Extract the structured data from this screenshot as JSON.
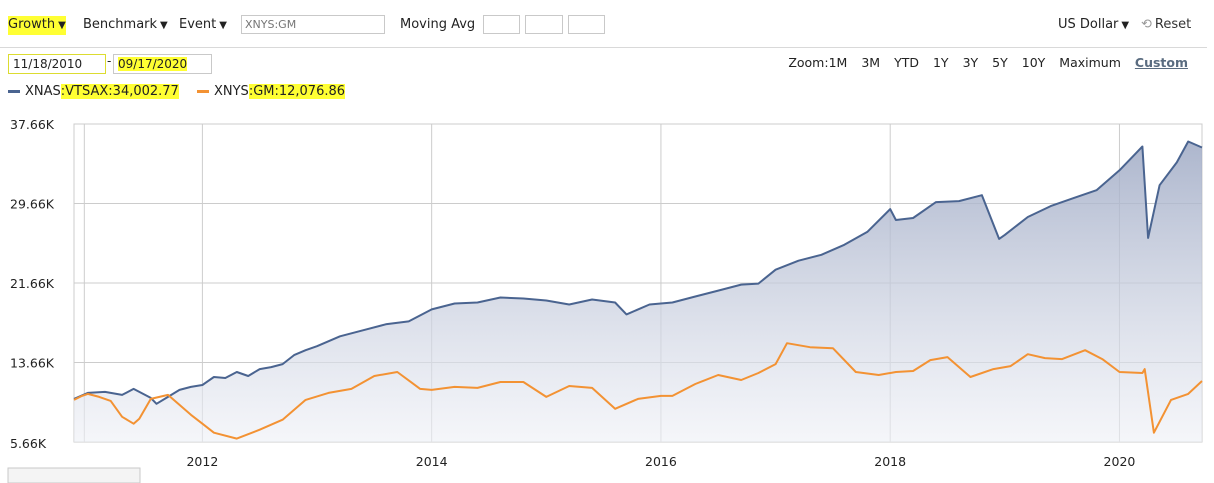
{
  "toolbar": {
    "growth": "Growth",
    "benchmark": "Benchmark",
    "event": "Event",
    "symbol_placeholder": "XNYS:GM",
    "moving_avg": "Moving Avg",
    "currency": "US Dollar",
    "reset": "Reset",
    "arrow": "▼",
    "reset_icon": "⟲"
  },
  "dates": {
    "start": "11/18/2010",
    "end": "09/17/2020",
    "sep": "-"
  },
  "zoom": {
    "label": "Zoom:",
    "options": [
      "1M",
      "3M",
      "YTD",
      "1Y",
      "3Y",
      "5Y",
      "10Y",
      "Maximum",
      "Custom"
    ],
    "active": "Custom"
  },
  "legend": [
    {
      "prefix": "XNAS",
      "symbol": ":VTSAX:34,002.77",
      "color": "#4a6490"
    },
    {
      "prefix": "XNYS",
      "symbol": ":GM:12,076.86",
      "color": "#f39233"
    }
  ],
  "chart_data": {
    "type": "line",
    "x_ticks": [
      "2012",
      "2014",
      "2016",
      "2018",
      "2020"
    ],
    "y_ticks": [
      "37.66K",
      "29.66K",
      "21.66K",
      "13.66K",
      "5.66K"
    ],
    "y_tick_values": [
      37660,
      29660,
      21660,
      13660,
      5660
    ],
    "ylim": [
      5660,
      37660
    ],
    "xlim": [
      2010.88,
      2020.72
    ],
    "series": [
      {
        "name": "XNAS:VTSAX",
        "color": "#4a6490",
        "area": true,
        "x": [
          2010.88,
          2011.0,
          2011.15,
          2011.3,
          2011.4,
          2011.55,
          2011.6,
          2011.7,
          2011.8,
          2011.9,
          2012.0,
          2012.1,
          2012.2,
          2012.3,
          2012.4,
          2012.5,
          2012.6,
          2012.7,
          2012.8,
          2012.9,
          2013.0,
          2013.2,
          2013.4,
          2013.6,
          2013.8,
          2014.0,
          2014.2,
          2014.4,
          2014.6,
          2014.8,
          2015.0,
          2015.2,
          2015.4,
          2015.6,
          2015.7,
          2015.9,
          2016.0,
          2016.1,
          2016.3,
          2016.5,
          2016.7,
          2016.85,
          2017.0,
          2017.2,
          2017.4,
          2017.6,
          2017.8,
          2018.0,
          2018.05,
          2018.2,
          2018.4,
          2018.6,
          2018.8,
          2018.95,
          2019.0,
          2019.2,
          2019.4,
          2019.6,
          2019.8,
          2020.0,
          2020.15,
          2020.2,
          2020.25,
          2020.35,
          2020.5,
          2020.6,
          2020.72
        ],
        "y": [
          10000,
          10600,
          10700,
          10400,
          11000,
          10100,
          9500,
          10200,
          10900,
          11200,
          11400,
          12200,
          12100,
          12700,
          12300,
          13000,
          13200,
          13500,
          14400,
          14900,
          15300,
          16300,
          16900,
          17500,
          17800,
          19000,
          19600,
          19700,
          20200,
          20100,
          19900,
          19500,
          20000,
          19700,
          18500,
          19500,
          19600,
          19700,
          20300,
          20900,
          21500,
          21600,
          23000,
          23900,
          24500,
          25500,
          26800,
          29100,
          28000,
          28200,
          29800,
          29900,
          30500,
          26100,
          26500,
          28300,
          29400,
          30200,
          31000,
          33000,
          34800,
          35400,
          26200,
          31500,
          33800,
          35900,
          35300
        ]
      },
      {
        "name": "XNYS:GM",
        "color": "#f39233",
        "area": false,
        "x": [
          2010.88,
          2010.95,
          2011.0,
          2011.1,
          2011.2,
          2011.3,
          2011.4,
          2011.45,
          2011.55,
          2011.7,
          2011.9,
          2012.0,
          2012.1,
          2012.3,
          2012.5,
          2012.7,
          2012.9,
          2013.1,
          2013.3,
          2013.5,
          2013.7,
          2013.9,
          2014.0,
          2014.2,
          2014.4,
          2014.6,
          2014.8,
          2015.0,
          2015.2,
          2015.4,
          2015.6,
          2015.8,
          2016.0,
          2016.1,
          2016.3,
          2016.5,
          2016.7,
          2016.85,
          2017.0,
          2017.1,
          2017.3,
          2017.5,
          2017.7,
          2017.9,
          2018.05,
          2018.2,
          2018.35,
          2018.5,
          2018.7,
          2018.9,
          2019.05,
          2019.2,
          2019.35,
          2019.5,
          2019.7,
          2019.85,
          2020.0,
          2020.2,
          2020.22,
          2020.3,
          2020.45,
          2020.6,
          2020.72
        ],
        "y": [
          9900,
          10300,
          10500,
          10200,
          9800,
          8200,
          7500,
          8000,
          10000,
          10400,
          8400,
          7500,
          6600,
          6000,
          6900,
          7900,
          9900,
          10600,
          11000,
          12300,
          12700,
          11000,
          10900,
          11200,
          11100,
          11700,
          11700,
          10200,
          11300,
          11100,
          9000,
          10000,
          10300,
          10300,
          11500,
          12400,
          11900,
          12600,
          13500,
          15600,
          15200,
          15100,
          12700,
          12400,
          12700,
          12800,
          13900,
          14200,
          12200,
          13000,
          13300,
          14500,
          14100,
          14000,
          14900,
          14000,
          12700,
          12600,
          13000,
          6600,
          9900,
          10500,
          11800
        ]
      }
    ]
  }
}
